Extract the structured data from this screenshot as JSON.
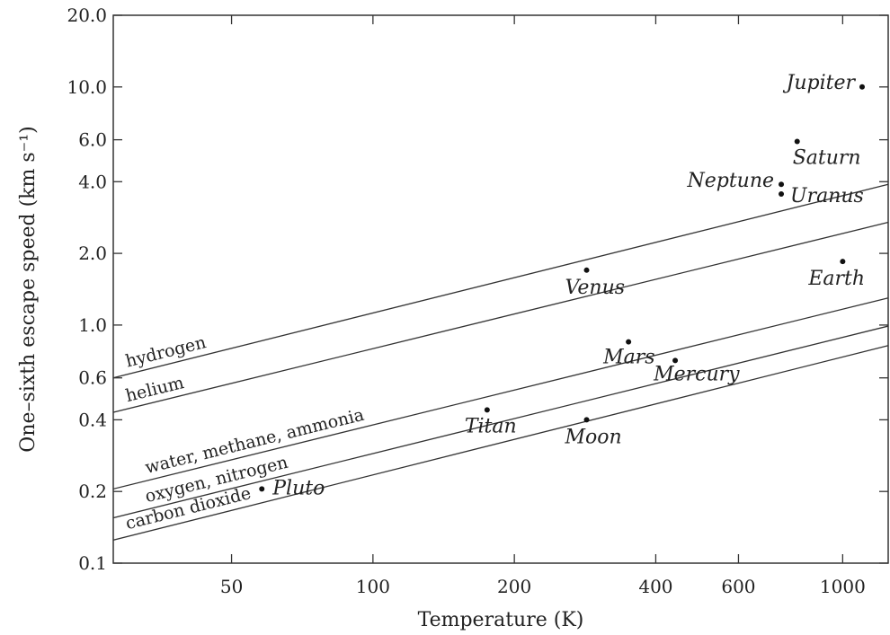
{
  "chart_data": {
    "type": "scatter",
    "xlabel": "Temperature (K)",
    "ylabel": "One–sixth escape speed (km s⁻¹)",
    "x_scale": "log",
    "y_scale": "log",
    "xlim": [
      28,
      1250
    ],
    "ylim": [
      0.1,
      20
    ],
    "x_ticks": [
      {
        "value": 50,
        "label": "50"
      },
      {
        "value": 100,
        "label": "100"
      },
      {
        "value": 200,
        "label": "200"
      },
      {
        "value": 400,
        "label": "400"
      },
      {
        "value": 600,
        "label": "600"
      },
      {
        "value": 1000,
        "label": "1000"
      }
    ],
    "y_ticks": [
      {
        "value": 0.1,
        "label": "0.1"
      },
      {
        "value": 0.2,
        "label": "0.2"
      },
      {
        "value": 0.4,
        "label": "0.4"
      },
      {
        "value": 0.6,
        "label": "0.6"
      },
      {
        "value": 1.0,
        "label": "1.0"
      },
      {
        "value": 2.0,
        "label": "2.0"
      },
      {
        "value": 4.0,
        "label": "4.0"
      },
      {
        "value": 6.0,
        "label": "6.0"
      },
      {
        "value": 10.0,
        "label": "10.0"
      },
      {
        "value": 20.0,
        "label": "20.0"
      }
    ],
    "points": [
      {
        "name": "Jupiter",
        "x": 1100,
        "y": 10.0
      },
      {
        "name": "Saturn",
        "x": 800,
        "y": 5.9
      },
      {
        "name": "Neptune",
        "x": 740,
        "y": 3.9
      },
      {
        "name": "Uranus",
        "x": 740,
        "y": 3.55
      },
      {
        "name": "Earth",
        "x": 1000,
        "y": 1.85
      },
      {
        "name": "Venus",
        "x": 285,
        "y": 1.7
      },
      {
        "name": "Mars",
        "x": 350,
        "y": 0.85
      },
      {
        "name": "Mercury",
        "x": 440,
        "y": 0.71
      },
      {
        "name": "Titan",
        "x": 175,
        "y": 0.44
      },
      {
        "name": "Moon",
        "x": 285,
        "y": 0.4
      },
      {
        "name": "Pluto",
        "x": 58,
        "y": 0.205
      }
    ],
    "series": [
      {
        "name": "hydrogen",
        "x": [
          28,
          1250
        ],
        "y": [
          0.6,
          3.9
        ]
      },
      {
        "name": "helium",
        "x": [
          28,
          1250
        ],
        "y": [
          0.43,
          2.7
        ]
      },
      {
        "name": "water, methane, ammonia",
        "x": [
          28,
          1250
        ],
        "y": [
          0.205,
          1.3
        ]
      },
      {
        "name": "oxygen, nitrogen",
        "x": [
          28,
          1250
        ],
        "y": [
          0.155,
          0.99
        ]
      },
      {
        "name": "carbon dioxide",
        "x": [
          28,
          1250
        ],
        "y": [
          0.125,
          0.82
        ]
      }
    ]
  }
}
